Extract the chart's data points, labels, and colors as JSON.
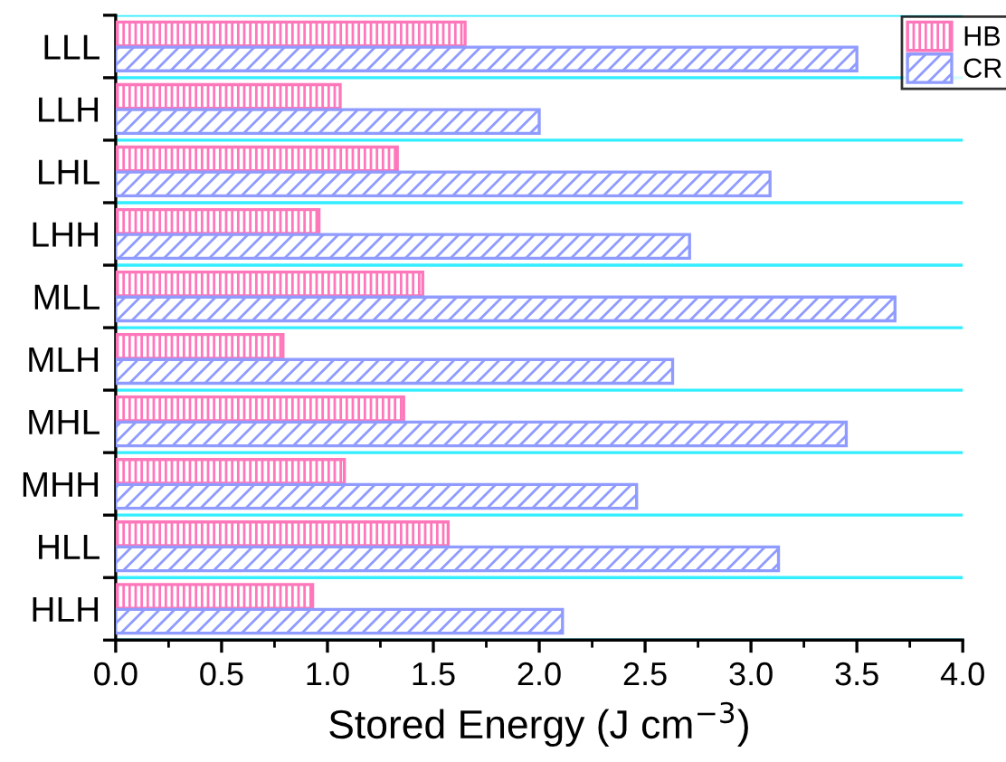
{
  "chart_data": {
    "type": "bar",
    "orientation": "horizontal",
    "xlabel": "Stored Energy (J cm$^{−3}$)",
    "categories": [
      "LLL",
      "LLH",
      "LHL",
      "LHH",
      "MLL",
      "MLH",
      "MHL",
      "MHH",
      "HLL",
      "HLH"
    ],
    "series": [
      {
        "name": "HB",
        "color": "#ff77bb",
        "values": [
          1.65,
          1.06,
          1.33,
          0.96,
          1.45,
          0.79,
          1.36,
          1.08,
          1.57,
          0.93
        ]
      },
      {
        "name": "CR",
        "color": "#8f9bff",
        "values": [
          3.5,
          2.0,
          3.09,
          2.71,
          3.68,
          2.63,
          3.45,
          2.46,
          3.13,
          2.11
        ]
      }
    ],
    "xlim": [
      0,
      4.0
    ],
    "xticks": [
      {
        "value": 0,
        "label": "0.0"
      },
      0.5,
      {
        "value": 1,
        "label": "1.0"
      },
      1.5,
      {
        "value": 2,
        "label": "2.0"
      },
      2.5,
      {
        "value": 3,
        "label": "3.0"
      },
      3.5,
      {
        "value": 4,
        "label": "4.0"
      }
    ],
    "grid": "y",
    "legend": "top right"
  }
}
